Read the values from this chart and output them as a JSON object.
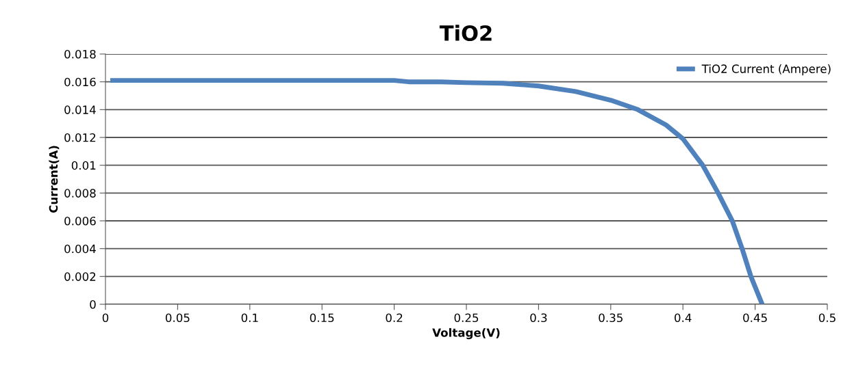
{
  "chart_data": {
    "type": "line",
    "title": "TiO2",
    "xlabel": "Voltage(V)",
    "ylabel": "Current(A)",
    "xlim": [
      0,
      0.5
    ],
    "xticks": [
      0,
      0.05,
      0.1,
      0.15,
      0.2,
      0.25,
      0.3,
      0.35,
      0.4,
      0.45,
      0.5
    ],
    "ylim": [
      0,
      0.018
    ],
    "yticks": [
      0,
      0.002,
      0.004,
      0.006,
      0.008,
      0.01,
      0.012,
      0.014,
      0.016,
      0.018
    ],
    "grid": "y",
    "legend": "top right",
    "marker": "none",
    "line_style": "solid",
    "series": [
      {
        "name": "TiO2 Current (Ampere)",
        "color": "#4f81bd",
        "x": [
          0.005,
          0.05,
          0.1,
          0.15,
          0.2,
          0.21,
          0.2325,
          0.25,
          0.275,
          0.3,
          0.3258,
          0.35,
          0.3688,
          0.3883,
          0.4,
          0.4137,
          0.4244,
          0.4342,
          0.441,
          0.4471,
          0.4549
        ],
        "values": [
          0.0161,
          0.0161,
          0.0161,
          0.0161,
          0.0161,
          0.016,
          0.016,
          0.01594,
          0.0159,
          0.0157,
          0.0153,
          0.01468,
          0.014,
          0.0129,
          0.0119,
          0.01,
          0.008,
          0.006,
          0.004,
          0.002,
          0
        ]
      }
    ]
  }
}
